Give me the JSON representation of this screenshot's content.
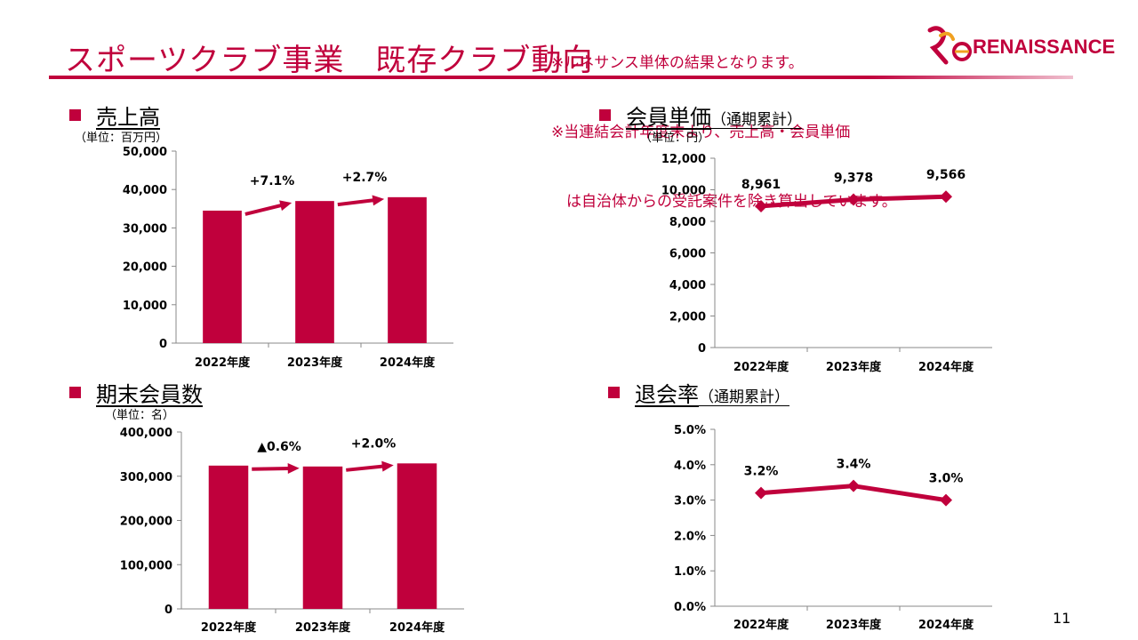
{
  "header": {
    "title": "スポーツクラブ事業　既存クラブ動向",
    "note1": "※ルネサンス単体の結果となります。",
    "note2": "※当連結会計年度末より、売上高・会員単価",
    "note3": "　は自治体からの受託案件を除き算出しています。",
    "logo_text": "RENAISSANCE",
    "brand_color": "#c0003c"
  },
  "page_number": "11",
  "chart_data": [
    {
      "type": "bar",
      "title": "売上高",
      "subtitle": "",
      "unit": "（単位：百万円）",
      "categories": [
        "2022年度",
        "2023年度",
        "2024年度"
      ],
      "values": [
        34500,
        37000,
        38000
      ],
      "ylim": [
        0,
        50000
      ],
      "yticks": [
        "0",
        "10,000",
        "20,000",
        "30,000",
        "40,000",
        "50,000"
      ],
      "changes": [
        "+7.1%",
        "+2.7%"
      ],
      "color": "#c0003c"
    },
    {
      "type": "line",
      "title": "会員単価",
      "subtitle": "（通期累計）",
      "unit": "（単位：円）",
      "categories": [
        "2022年度",
        "2023年度",
        "2024年度"
      ],
      "values": [
        8961,
        9378,
        9566
      ],
      "data_labels": [
        "8,961",
        "9,378",
        "9,566"
      ],
      "ylim": [
        0,
        12000
      ],
      "yticks": [
        "0",
        "2,000",
        "4,000",
        "6,000",
        "8,000",
        "10,000",
        "12,000"
      ],
      "color": "#c0003c"
    },
    {
      "type": "bar",
      "title": "期末会員数",
      "subtitle": "",
      "unit": "（単位：名）",
      "categories": [
        "2022年度",
        "2023年度",
        "2024年度"
      ],
      "values": [
        324000,
        322000,
        329000
      ],
      "ylim": [
        0,
        400000
      ],
      "yticks": [
        "0",
        "100,000",
        "200,000",
        "300,000",
        "400,000"
      ],
      "changes": [
        "▲0.6%",
        "+2.0%"
      ],
      "color": "#c0003c"
    },
    {
      "type": "line",
      "title": "退会率",
      "subtitle": "（通期累計）",
      "unit": "",
      "categories": [
        "2022年度",
        "2023年度",
        "2024年度"
      ],
      "values": [
        3.2,
        3.4,
        3.0
      ],
      "data_labels": [
        "3.2%",
        "3.4%",
        "3.0%"
      ],
      "ylim": [
        0,
        5
      ],
      "yticks": [
        "0.0%",
        "1.0%",
        "2.0%",
        "3.0%",
        "4.0%",
        "5.0%"
      ],
      "color": "#c0003c"
    }
  ]
}
